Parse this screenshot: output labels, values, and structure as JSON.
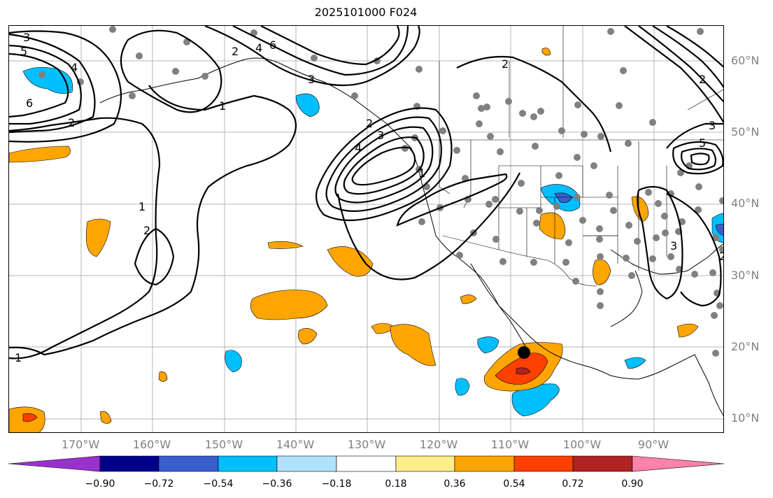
{
  "title": "2025101000 F024",
  "latitude_labels": [
    "60°N",
    "50°N",
    "40°N",
    "30°N",
    "20°N",
    "10°N"
  ],
  "longitude_labels": [
    "170°W",
    "160°W",
    "150°W",
    "140°W",
    "130°W",
    "120°W",
    "110°W",
    "100°W",
    "90°W"
  ],
  "colorbar": {
    "tick_labels": [
      "−0.90",
      "−0.72",
      "−0.54",
      "−0.36",
      "−0.18",
      "0.18",
      "0.36",
      "0.54",
      "0.72",
      "0.90"
    ],
    "colors": [
      "#9932cc",
      "#00008b",
      "#3a5fcd",
      "#00bfff",
      "#b0e2ff",
      "#ffffff",
      "#ffec8b",
      "#ffa500",
      "#ff4000",
      "#b22222",
      "#ff82ab"
    ]
  },
  "contour_labels": [
    "3",
    "5",
    "4",
    "6",
    "2",
    "1",
    "2",
    "4",
    "6",
    "3",
    "2",
    "3",
    "4",
    "1",
    "2",
    "3",
    "5",
    "2",
    "1",
    "1",
    "2",
    "3",
    "2"
  ],
  "marker": {
    "name": "storm-center",
    "lon": "108°W",
    "lat": "19°N"
  }
}
